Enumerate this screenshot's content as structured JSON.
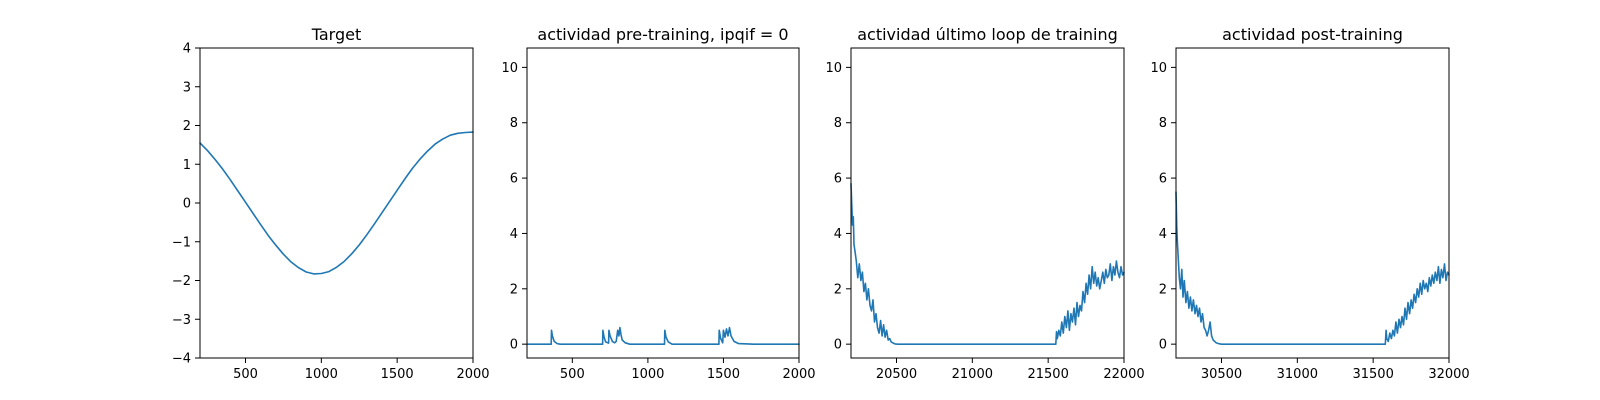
{
  "chart_data": [
    {
      "type": "line",
      "title": "Target",
      "xlabel": "",
      "ylabel": "",
      "xlim": [
        200,
        2000
      ],
      "ylim": [
        -4,
        4
      ],
      "xticks": [
        500,
        1000,
        1500,
        2000
      ],
      "yticks": [
        -4,
        -3,
        -2,
        -1,
        0,
        1,
        2,
        3,
        4
      ],
      "xtick_labels": [
        "500",
        "1000",
        "1500",
        "2000"
      ],
      "ytick_labels": [
        "−4",
        "−3",
        "−2",
        "−1",
        "0",
        "1",
        "2",
        "3",
        "4"
      ],
      "grid": false,
      "color": "#1f77b4",
      "series": [
        {
          "x": [
            200,
            250,
            300,
            350,
            400,
            450,
            500,
            550,
            600,
            650,
            700,
            750,
            800,
            850,
            900,
            950,
            1000,
            1050,
            1100,
            1150,
            1200,
            1250,
            1300,
            1350,
            1400,
            1450,
            1500,
            1550,
            1600,
            1650,
            1700,
            1750,
            1800,
            1850,
            1900,
            1950,
            2000
          ],
          "values": [
            1.55,
            1.35,
            1.12,
            0.87,
            0.6,
            0.31,
            0.02,
            -0.27,
            -0.56,
            -0.84,
            -1.09,
            -1.32,
            -1.52,
            -1.67,
            -1.78,
            -1.83,
            -1.82,
            -1.77,
            -1.66,
            -1.51,
            -1.31,
            -1.08,
            -0.82,
            -0.54,
            -0.25,
            0.04,
            0.33,
            0.62,
            0.89,
            1.13,
            1.34,
            1.52,
            1.65,
            1.75,
            1.8,
            1.82,
            1.83
          ]
        }
      ]
    },
    {
      "type": "line",
      "title": "actividad pre-training, ipqif = 0",
      "xlabel": "",
      "ylabel": "",
      "xlim": [
        200,
        2000
      ],
      "ylim": [
        -0.5,
        10.7
      ],
      "xticks": [
        500,
        1000,
        1500,
        2000
      ],
      "yticks": [
        0,
        2,
        4,
        6,
        8,
        10
      ],
      "xtick_labels": [
        "500",
        "1000",
        "1500",
        "2000"
      ],
      "ytick_labels": [
        "0",
        "2",
        "4",
        "6",
        "8",
        "10"
      ],
      "grid": false,
      "color": "#1f77b4",
      "series": [
        {
          "x": [
            200,
            360,
            362,
            368,
            380,
            400,
            420,
            700,
            702,
            710,
            720,
            740,
            742,
            750,
            765,
            780,
            790,
            800,
            808,
            815,
            822,
            830,
            850,
            880,
            1110,
            1112,
            1120,
            1135,
            1160,
            1470,
            1472,
            1482,
            1495,
            1500,
            1510,
            1520,
            1530,
            1540,
            1550,
            1570,
            1600,
            1700,
            2000
          ],
          "values": [
            0,
            0,
            0.5,
            0.3,
            0.1,
            0.02,
            0,
            0,
            0.5,
            0.25,
            0.08,
            0.04,
            0.5,
            0.3,
            0.1,
            0.05,
            0.1,
            0.5,
            0.3,
            0.6,
            0.35,
            0.15,
            0.05,
            0,
            0,
            0.5,
            0.25,
            0.08,
            0,
            0,
            0.5,
            0.2,
            0.05,
            0.5,
            0.25,
            0.55,
            0.3,
            0.6,
            0.3,
            0.1,
            0.02,
            0,
            0
          ]
        }
      ]
    },
    {
      "type": "line",
      "title": "actividad último loop de training",
      "xlabel": "",
      "ylabel": "",
      "xlim": [
        20200,
        22000
      ],
      "ylim": [
        -0.5,
        10.7
      ],
      "xticks": [
        20500,
        21000,
        21500,
        22000
      ],
      "yticks": [
        0,
        2,
        4,
        6,
        8,
        10
      ],
      "xtick_labels": [
        "20500",
        "21000",
        "21500",
        "22000"
      ],
      "ytick_labels": [
        "0",
        "2",
        "4",
        "6",
        "8",
        "10"
      ],
      "grid": false,
      "color": "#1f77b4",
      "series": [
        {
          "x": [
            20200,
            20205,
            20210,
            20215,
            20220,
            20228,
            20235,
            20245,
            20255,
            20265,
            20275,
            20285,
            20295,
            20305,
            20315,
            20325,
            20335,
            20345,
            20355,
            20365,
            20375,
            20385,
            20395,
            20405,
            20415,
            20425,
            20435,
            20445,
            20455,
            20465,
            20475,
            20490,
            20510,
            20550,
            21550,
            21555,
            21560,
            21570,
            21580,
            21590,
            21600,
            21610,
            21620,
            21630,
            21640,
            21650,
            21660,
            21670,
            21680,
            21690,
            21700,
            21710,
            21720,
            21730,
            21740,
            21750,
            21760,
            21770,
            21780,
            21790,
            21800,
            21810,
            21820,
            21830,
            21840,
            21850,
            21860,
            21870,
            21880,
            21890,
            21900,
            21910,
            21920,
            21930,
            21940,
            21950,
            21960,
            21970,
            21980,
            21990,
            22000
          ],
          "values": [
            5.8,
            5.0,
            4.3,
            4.6,
            3.6,
            3.3,
            3.0,
            2.4,
            2.9,
            2.3,
            2.6,
            1.9,
            2.2,
            1.6,
            2.0,
            1.4,
            1.2,
            1.6,
            0.8,
            1.1,
            0.6,
            0.4,
            0.85,
            0.3,
            0.7,
            0.25,
            0.5,
            0.15,
            0.2,
            0.08,
            0.05,
            0.01,
            0,
            0,
            0,
            0.45,
            0.2,
            0.5,
            0.3,
            0.8,
            0.4,
            1.0,
            0.6,
            1.2,
            0.5,
            1.1,
            0.8,
            1.3,
            0.7,
            1.5,
            1.0,
            1.4,
            1.2,
            1.9,
            1.5,
            2.2,
            1.8,
            2.5,
            2.0,
            2.8,
            2.2,
            2.6,
            2.1,
            2.4,
            2.0,
            2.3,
            2.6,
            2.2,
            2.7,
            2.4,
            2.5,
            2.9,
            2.3,
            2.8,
            2.5,
            3.0,
            2.6,
            2.4,
            2.8,
            2.5,
            2.6
          ]
        }
      ]
    },
    {
      "type": "line",
      "title": "actividad post-training",
      "xlabel": "",
      "ylabel": "",
      "xlim": [
        30200,
        32000
      ],
      "ylim": [
        -0.5,
        10.7
      ],
      "xticks": [
        30500,
        31000,
        31500,
        32000
      ],
      "yticks": [
        0,
        2,
        4,
        6,
        8,
        10
      ],
      "xtick_labels": [
        "30500",
        "31000",
        "31500",
        "32000"
      ],
      "ytick_labels": [
        "0",
        "2",
        "4",
        "6",
        "8",
        "10"
      ],
      "grid": false,
      "color": "#1f77b4",
      "series": [
        {
          "x": [
            30200,
            30205,
            30210,
            30216,
            30222,
            30230,
            30238,
            30246,
            30255,
            30265,
            30275,
            30285,
            30295,
            30305,
            30315,
            30325,
            30335,
            30345,
            30355,
            30365,
            30375,
            30385,
            30395,
            30405,
            30415,
            30425,
            30435,
            30445,
            30455,
            30465,
            30480,
            30500,
            30550,
            31580,
            31585,
            31590,
            31600,
            31610,
            31620,
            31630,
            31640,
            31650,
            31660,
            31670,
            31680,
            31690,
            31700,
            31710,
            31720,
            31730,
            31740,
            31750,
            31760,
            31770,
            31780,
            31790,
            31800,
            31810,
            31820,
            31830,
            31840,
            31850,
            31860,
            31870,
            31880,
            31890,
            31900,
            31910,
            31920,
            31930,
            31940,
            31950,
            31960,
            31970,
            31980,
            31990,
            32000
          ],
          "values": [
            5.5,
            4.2,
            3.6,
            3.0,
            2.4,
            2.0,
            2.7,
            1.7,
            2.3,
            1.5,
            1.9,
            1.3,
            1.7,
            1.2,
            1.6,
            1.1,
            1.4,
            1.0,
            1.3,
            0.8,
            1.1,
            0.6,
            0.5,
            0.3,
            0.5,
            0.8,
            0.3,
            0.15,
            0.1,
            0.05,
            0.02,
            0,
            0,
            0,
            0.5,
            0.2,
            0.1,
            0.4,
            0.2,
            0.5,
            0.3,
            0.8,
            0.4,
            0.9,
            0.6,
            1.0,
            0.7,
            1.3,
            0.9,
            1.5,
            1.1,
            1.6,
            1.3,
            1.8,
            1.5,
            2.0,
            1.7,
            2.2,
            1.8,
            2.3,
            2.0,
            2.2,
            1.9,
            2.4,
            2.1,
            2.5,
            2.2,
            2.6,
            2.3,
            2.8,
            2.2,
            2.7,
            2.4,
            2.9,
            2.3,
            2.6,
            2.5
          ]
        }
      ]
    }
  ]
}
